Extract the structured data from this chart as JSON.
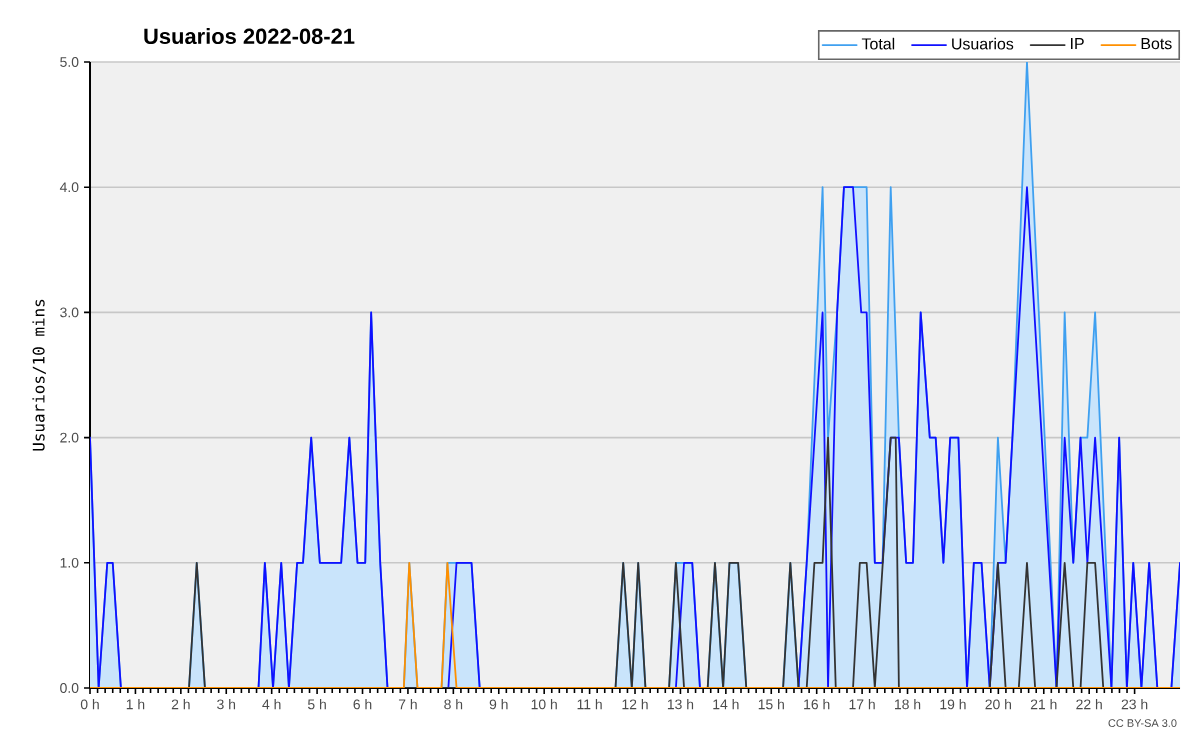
{
  "chart_data": {
    "type": "line",
    "title": "Usuarios  2022-08-21",
    "ylabel": "Usuarios/10 mins",
    "annotations": [
      "CC BY-SA 3.0"
    ],
    "xlim": [
      0,
      24
    ],
    "ylim": [
      0,
      5
    ],
    "xticks": [
      {
        "value": 0,
        "label": "0 h"
      },
      {
        "value": 1,
        "label": "1 h"
      },
      {
        "value": 2,
        "label": "2 h"
      },
      {
        "value": 3,
        "label": "3 h"
      },
      {
        "value": 4,
        "label": "4 h"
      },
      {
        "value": 5,
        "label": "5 h"
      },
      {
        "value": 6,
        "label": "6 h"
      },
      {
        "value": 7,
        "label": "7 h"
      },
      {
        "value": 8,
        "label": "8 h"
      },
      {
        "value": 9,
        "label": "9 h"
      },
      {
        "value": 10,
        "label": "10 h"
      },
      {
        "value": 11,
        "label": "11 h"
      },
      {
        "value": 12,
        "label": "12 h"
      },
      {
        "value": 13,
        "label": "13 h"
      },
      {
        "value": 14,
        "label": "14 h"
      },
      {
        "value": 15,
        "label": "15 h"
      },
      {
        "value": 16,
        "label": "16 h"
      },
      {
        "value": 17,
        "label": "17 h"
      },
      {
        "value": 18,
        "label": "18 h"
      },
      {
        "value": 19,
        "label": "19 h"
      },
      {
        "value": 20,
        "label": "20 h"
      },
      {
        "value": 21,
        "label": "21 h"
      },
      {
        "value": 22,
        "label": "22 h"
      },
      {
        "value": 23,
        "label": "23 h"
      }
    ],
    "yticks": [
      {
        "value": 0,
        "label": "0.0"
      },
      {
        "value": 1,
        "label": "1.0"
      },
      {
        "value": 2,
        "label": "2.0"
      },
      {
        "value": 3,
        "label": "3.0"
      },
      {
        "value": 4,
        "label": "4.0"
      },
      {
        "value": 5,
        "label": "5.0"
      }
    ],
    "grid": "y",
    "legend": "top right",
    "series": [
      {
        "name": "Total",
        "type": "area",
        "color": "#3fa0f0",
        "x": [
          0,
          0.19,
          0.38,
          0.5,
          0.68,
          2.18,
          2.35,
          2.53,
          3.71,
          3.85,
          4.03,
          4.21,
          4.38,
          4.56,
          4.69,
          4.87,
          5.06,
          5.53,
          5.71,
          5.89,
          6.06,
          6.19,
          6.39,
          6.55,
          6.91,
          7.03,
          7.21,
          7.74,
          7.87,
          8.07,
          8.4,
          8.58,
          11.57,
          11.74,
          11.93,
          12.07,
          12.23,
          12.75,
          12.9,
          13.08,
          13.26,
          13.43,
          13.6,
          13.76,
          13.94,
          14.08,
          14.27,
          14.45,
          15.26,
          15.42,
          15.6,
          15.78,
          16.13,
          16.25,
          16.45,
          16.6,
          16.8,
          17.1,
          17.28,
          17.45,
          17.63,
          17.81,
          17.97,
          18.12,
          18.29,
          18.49,
          18.62,
          18.79,
          18.94,
          19.12,
          19.31,
          19.46,
          19.63,
          19.81,
          19.99,
          20.16,
          20.31,
          20.63,
          21.28,
          21.46,
          21.65,
          21.81,
          21.96,
          22.13,
          22.49,
          22.66,
          22.83,
          22.97,
          23.15,
          23.32,
          23.5,
          23.81,
          24
        ],
        "values": [
          2,
          0,
          1,
          1,
          0,
          0,
          1,
          0,
          0,
          1,
          0,
          1,
          0,
          1,
          1,
          2,
          1,
          1,
          2,
          1,
          1,
          3,
          1,
          0,
          0,
          1,
          0,
          0,
          1,
          1,
          1,
          0,
          0,
          1,
          0,
          1,
          0,
          0,
          1,
          1,
          1,
          0,
          0,
          1,
          0,
          1,
          1,
          0,
          0,
          1,
          0,
          1,
          4,
          2,
          3,
          4,
          4,
          4,
          1,
          1,
          4,
          2,
          1,
          1,
          3,
          2,
          2,
          1,
          2,
          2,
          0,
          1,
          1,
          0,
          2,
          1,
          2,
          5,
          0,
          3,
          1,
          2,
          2,
          3,
          0,
          2,
          0,
          1,
          0,
          1,
          0,
          0,
          1
        ]
      },
      {
        "name": "Usuarios",
        "type": "line",
        "color": "#1010ff",
        "x": [
          0,
          0.19,
          0.38,
          0.5,
          0.68,
          3.71,
          3.85,
          4.03,
          4.21,
          4.38,
          4.56,
          4.69,
          4.87,
          5.06,
          5.53,
          5.71,
          5.89,
          6.06,
          6.19,
          6.39,
          6.55,
          7.89,
          8.07,
          8.4,
          8.58,
          12.9,
          13.08,
          13.26,
          13.43,
          15.6,
          15.78,
          16.13,
          16.25,
          16.45,
          16.6,
          16.8,
          16.98,
          17.1,
          17.28,
          17.45,
          17.63,
          17.81,
          17.97,
          18.12,
          18.29,
          18.49,
          18.62,
          18.79,
          18.94,
          19.12,
          19.31,
          19.46,
          19.63,
          19.81,
          19.99,
          20.16,
          20.31,
          20.63,
          21.28,
          21.46,
          21.65,
          21.81,
          21.96,
          22.13,
          22.49,
          22.66,
          22.83,
          22.97,
          23.15,
          23.32,
          23.5,
          23.81,
          24
        ],
        "values": [
          2,
          0,
          1,
          1,
          0,
          0,
          1,
          0,
          1,
          0,
          1,
          1,
          2,
          1,
          1,
          2,
          1,
          1,
          3,
          1,
          0,
          0,
          1,
          1,
          0,
          0,
          1,
          1,
          0,
          0,
          1,
          3,
          0,
          3,
          4,
          4,
          3,
          3,
          1,
          1,
          2,
          2,
          1,
          1,
          3,
          2,
          2,
          1,
          2,
          2,
          0,
          1,
          1,
          0,
          1,
          1,
          2,
          4,
          0,
          2,
          1,
          2,
          1,
          2,
          0,
          2,
          0,
          1,
          0,
          1,
          0,
          0,
          1
        ]
      },
      {
        "name": "IP",
        "type": "line",
        "color": "#333333",
        "x": [
          0,
          2.18,
          2.35,
          2.53,
          11.57,
          11.74,
          11.93,
          12.07,
          12.23,
          12.75,
          12.9,
          13.08,
          13.6,
          13.76,
          13.94,
          14.08,
          14.27,
          14.45,
          15.26,
          15.42,
          15.6,
          15.78,
          15.95,
          16.13,
          16.25,
          16.42,
          16.8,
          16.95,
          17.1,
          17.28,
          17.63,
          17.74,
          17.81,
          19.81,
          19.99,
          20.16,
          20.45,
          20.63,
          20.81,
          21.28,
          21.46,
          21.65,
          21.81,
          21.96,
          22.13,
          22.31,
          24
        ],
        "values": [
          0,
          0,
          1,
          0,
          0,
          1,
          0,
          1,
          0,
          0,
          1,
          0,
          0,
          1,
          0,
          1,
          1,
          0,
          0,
          1,
          0,
          0,
          1,
          1,
          2,
          0,
          0,
          1,
          1,
          0,
          2,
          2,
          0,
          0,
          1,
          0,
          0,
          1,
          0,
          0,
          1,
          0,
          0,
          1,
          1,
          0,
          0
        ]
      },
      {
        "name": "Bots",
        "type": "line",
        "color": "#ff9000",
        "x": [
          0,
          6.91,
          7.03,
          7.21,
          7.74,
          7.87,
          8.07,
          24
        ],
        "values": [
          0,
          0,
          1,
          0,
          0,
          1,
          0,
          0
        ]
      }
    ]
  }
}
